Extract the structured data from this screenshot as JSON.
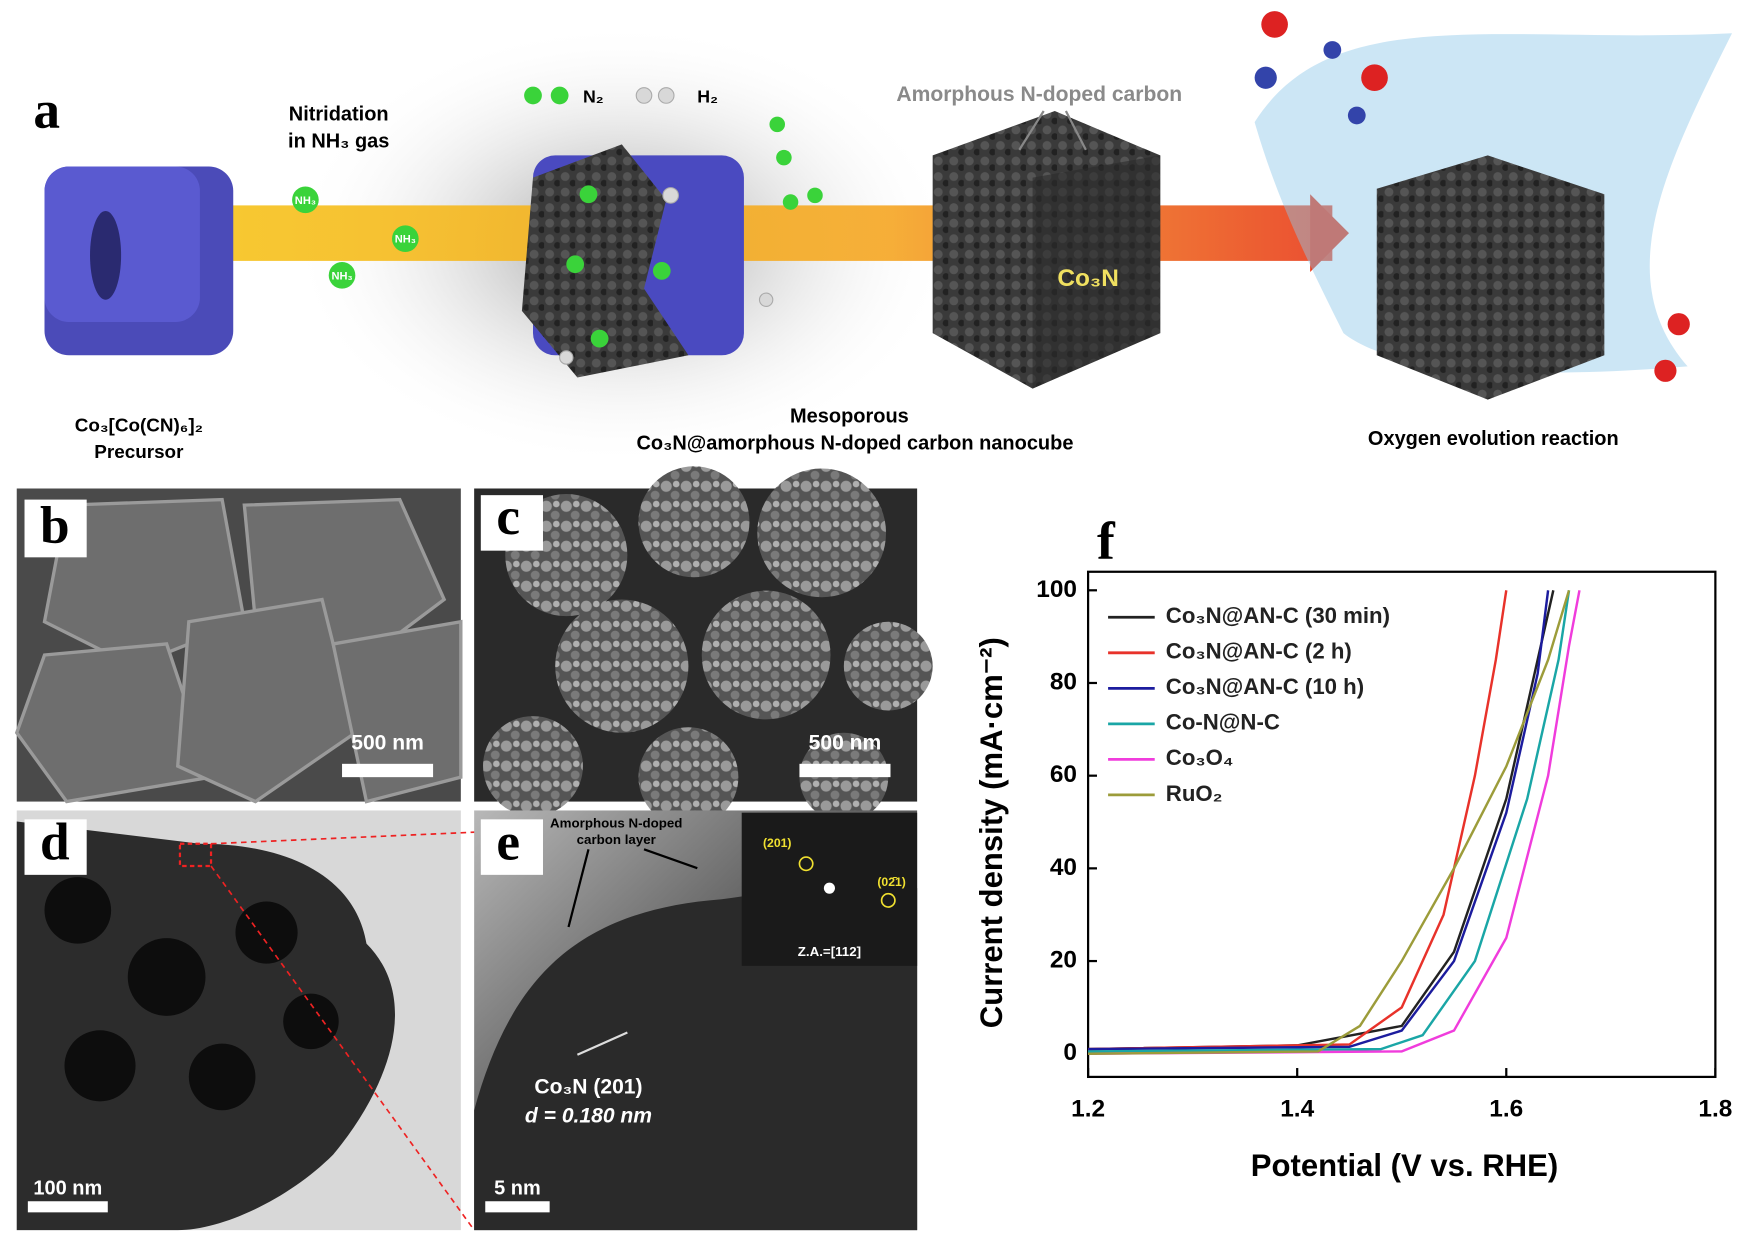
{
  "panel_a": {
    "label": "a",
    "step_text": [
      "Nitridation",
      "in NH₃ gas"
    ],
    "molecule_labels": [
      "NH₃",
      "NH₃",
      "NH₃"
    ],
    "legend": [
      "N₂",
      "H₂"
    ],
    "shell_text": "Amorphous N-doped carbon",
    "core_text": "Co₃N",
    "precursor": [
      "Co₃[Co(CN)₆]₂",
      "Precursor"
    ],
    "product": [
      "Mesoporous",
      "Co₃N@amorphous N-doped carbon nanocube"
    ],
    "reaction": "Oxygen evolution reaction"
  },
  "panel_b": {
    "label": "b",
    "scale_bar": "500 nm"
  },
  "panel_c": {
    "label": "c",
    "scale_bar": "500 nm"
  },
  "panel_d": {
    "label": "d",
    "scale_bar": "100 nm"
  },
  "panel_e": {
    "label": "e",
    "layer_text": [
      "Amorphous N-doped",
      "carbon layer"
    ],
    "spots": [
      "(201)",
      "(02̄1)"
    ],
    "zone_axis": "Z.A.=[112]",
    "lattice": [
      "Co₃N (201)",
      "d = 0.180 nm"
    ],
    "scale_bar": "5 nm"
  },
  "panel_f": {
    "label": "f"
  },
  "chart_data": {
    "type": "line",
    "x_label": "Potential (V vs. RHE)",
    "y_label": "Current density (mA·cm⁻²)",
    "xlim": [
      1.2,
      1.8
    ],
    "ylim": [
      -5,
      104
    ],
    "xticks": [
      1.2,
      1.4,
      1.6,
      1.8
    ],
    "yticks": [
      0,
      20,
      40,
      60,
      80,
      100
    ],
    "legend": "upper left",
    "series": [
      {
        "name": "Co₃N@AN-C (30 min)",
        "color": "#222222",
        "x": [
          1.2,
          1.4,
          1.5,
          1.55,
          1.6,
          1.63,
          1.645
        ],
        "values": [
          1,
          1.8,
          6,
          22,
          55,
          85,
          100
        ]
      },
      {
        "name": "Co₃N@AN-C (2 h)",
        "color": "#e8322a",
        "x": [
          1.2,
          1.45,
          1.5,
          1.54,
          1.57,
          1.59,
          1.6
        ],
        "values": [
          1,
          2,
          10,
          30,
          60,
          85,
          100
        ]
      },
      {
        "name": "Co₃N@AN-C (10 h)",
        "color": "#1c1c9e",
        "x": [
          1.2,
          1.45,
          1.5,
          1.55,
          1.6,
          1.63,
          1.64
        ],
        "values": [
          1,
          1.5,
          5,
          20,
          52,
          82,
          100
        ]
      },
      {
        "name": "Co-N@N-C",
        "color": "#1aa6a6",
        "x": [
          1.2,
          1.48,
          1.52,
          1.57,
          1.62,
          1.65,
          1.66
        ],
        "values": [
          0.5,
          1,
          4,
          20,
          55,
          85,
          100
        ]
      },
      {
        "name": "Co₃O₄",
        "color": "#f03cdc",
        "x": [
          1.2,
          1.5,
          1.55,
          1.6,
          1.64,
          1.66,
          1.67
        ],
        "values": [
          0,
          0.5,
          5,
          25,
          60,
          88,
          100
        ]
      },
      {
        "name": "RuO₂",
        "color": "#9c9c3a",
        "x": [
          1.2,
          1.42,
          1.46,
          1.5,
          1.55,
          1.6,
          1.64,
          1.66
        ],
        "values": [
          0,
          0.5,
          6,
          20,
          40,
          62,
          85,
          100
        ]
      }
    ]
  }
}
